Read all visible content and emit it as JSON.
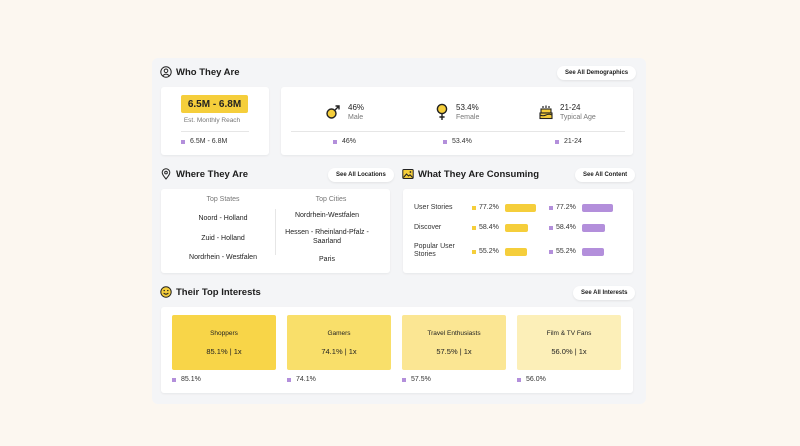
{
  "who": {
    "title": "Who They Are",
    "link": "See All Demographics",
    "reach": {
      "value": "6.5M - 6.8M",
      "label": "Est. Monthly Reach",
      "legend": "6.5M - 6.8M"
    },
    "stats": [
      {
        "icon": "male-icon",
        "value": "46%",
        "label": "Male",
        "legend": "46%"
      },
      {
        "icon": "female-icon",
        "value": "53.4%",
        "label": "Female",
        "legend": "53.4%"
      },
      {
        "icon": "cake-icon",
        "value": "21-24",
        "label": "Typical Age",
        "legend": "21-24"
      }
    ]
  },
  "where": {
    "title": "Where They Are",
    "link": "See All Locations",
    "states_header": "Top States",
    "cities_header": "Top Cities",
    "states": [
      "Noord - Holland",
      "Zuid - Holland",
      "Nordrhein - Westfalen"
    ],
    "cities": [
      "Nordrhein-Westfalen",
      "Hessen - Rheinland-Pfalz - Saarland",
      "Paris"
    ]
  },
  "consuming": {
    "title": "What They Are Consuming",
    "link": "See All Content",
    "rows": [
      {
        "label": "User Stories",
        "pct": "77.2%",
        "value": 77.2,
        "pct2": "77.2%"
      },
      {
        "label": "Discover",
        "pct": "58.4%",
        "value": 58.4,
        "pct2": "58.4%"
      },
      {
        "label": "Popular User Stories",
        "pct": "55.2%",
        "value": 55.2,
        "pct2": "55.2%"
      }
    ]
  },
  "interests": {
    "title": "Their Top Interests",
    "link": "See All Interests",
    "items": [
      {
        "name": "Shoppers",
        "stat": "85.1%  |  1x",
        "legend": "85.1%",
        "color": "#f8d548"
      },
      {
        "name": "Gamers",
        "stat": "74.1%  |  1x",
        "legend": "74.1%",
        "color": "#f9df6a"
      },
      {
        "name": "Travel Enthusiasts",
        "stat": "57.5%  |  1x",
        "legend": "57.5%",
        "color": "#fbe693"
      },
      {
        "name": "Film & TV Fans",
        "stat": "56.0%  |  1x",
        "legend": "56.0%",
        "color": "#fcefb8"
      }
    ]
  },
  "colors": {
    "yellow": "#f5ce3b",
    "purple": "#b38fdb",
    "background": "#fcf7f0",
    "panel": "#f4f5f7"
  }
}
